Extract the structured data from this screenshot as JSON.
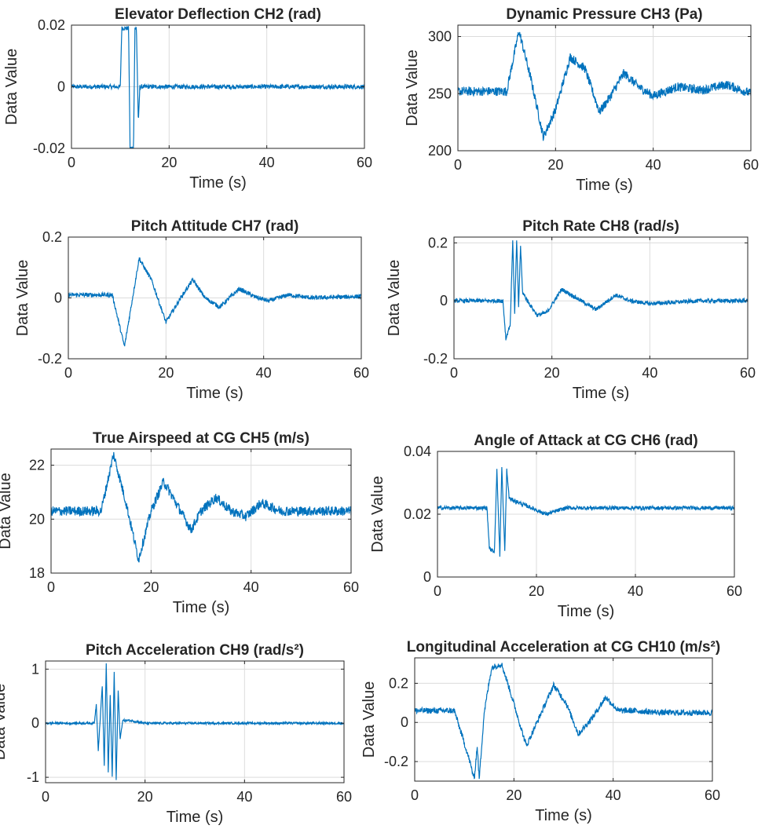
{
  "figure": {
    "series_color": "#0072BD",
    "axis_color": "#262626",
    "grid_color": "#dcdcdc"
  },
  "chart_data": [
    {
      "type": "line",
      "title": "Elevator Deflection CH2 (rad)",
      "xlabel": "Time (s)",
      "ylabel": "Data Value",
      "xlim": [
        0,
        60
      ],
      "ylim": [
        -0.02,
        0.02
      ],
      "xticks": [
        0,
        20,
        40,
        60
      ],
      "xtick_labels": [
        "0",
        "20",
        "40",
        "60"
      ],
      "yticks": [
        -0.02,
        0,
        0.02
      ],
      "ytick_labels": [
        "-0.02",
        "0",
        "0.02"
      ],
      "grid": true,
      "noise": 0.0007,
      "x": [
        0,
        10,
        10.3,
        11.7,
        12,
        12.7,
        13,
        13.3,
        13.7,
        14,
        60
      ],
      "y": [
        0,
        0,
        0.019,
        0.019,
        -0.02,
        -0.02,
        0.019,
        0.019,
        -0.012,
        0,
        0
      ]
    },
    {
      "type": "line",
      "title": "Dynamic Pressure CH3 (Pa)",
      "xlabel": "Time (s)",
      "ylabel": "Data Value",
      "xlim": [
        0,
        60
      ],
      "ylim": [
        200,
        310
      ],
      "xticks": [
        0,
        20,
        40,
        60
      ],
      "xtick_labels": [
        "0",
        "20",
        "40",
        "60"
      ],
      "yticks": [
        200,
        250,
        300
      ],
      "ytick_labels": [
        "200",
        "250",
        "300"
      ],
      "grid": true,
      "noise": 4,
      "x": [
        0,
        10,
        12.5,
        15,
        17.5,
        20,
        23,
        26,
        29,
        31,
        34,
        37,
        40,
        45,
        50,
        55,
        60
      ],
      "y": [
        252,
        252,
        305,
        262,
        212,
        236,
        282,
        272,
        234,
        246,
        268,
        256,
        248,
        256,
        253,
        258,
        250
      ]
    },
    {
      "type": "line",
      "title": "Pitch Attitude CH7 (rad)",
      "xlabel": "Time (s)",
      "ylabel": "Data Value",
      "xlim": [
        0,
        60
      ],
      "ylim": [
        -0.2,
        0.2
      ],
      "xticks": [
        0,
        20,
        40,
        60
      ],
      "xtick_labels": [
        "0",
        "20",
        "40",
        "60"
      ],
      "yticks": [
        -0.2,
        0,
        0.2
      ],
      "ytick_labels": [
        "-0.2",
        "0",
        "0.2"
      ],
      "grid": true,
      "noise": 0.007,
      "x": [
        0,
        9,
        11.5,
        14.5,
        17,
        20,
        23,
        25.5,
        28,
        31,
        35,
        38,
        41,
        45,
        50,
        60
      ],
      "y": [
        0.01,
        0.01,
        -0.16,
        0.13,
        0.06,
        -0.08,
        0.0,
        0.06,
        0.0,
        -0.03,
        0.03,
        0.005,
        -0.01,
        0.01,
        0.0,
        0.005
      ]
    },
    {
      "type": "line",
      "title": "Pitch Rate CH8 (rad/s)",
      "xlabel": "Time (s)",
      "ylabel": "Data Value",
      "xlim": [
        0,
        60
      ],
      "ylim": [
        -0.2,
        0.22
      ],
      "xticks": [
        0,
        20,
        40,
        60
      ],
      "xtick_labels": [
        "0",
        "20",
        "40",
        "60"
      ],
      "yticks": [
        -0.2,
        0,
        0.2
      ],
      "ytick_labels": [
        "-0.2",
        "0",
        "0.2"
      ],
      "grid": true,
      "noise": 0.007,
      "x": [
        0,
        10,
        10.6,
        11.5,
        12,
        12.4,
        12.8,
        13.2,
        13.6,
        14,
        15,
        17,
        19,
        22,
        26,
        29,
        33,
        36,
        40,
        50,
        60
      ],
      "y": [
        0,
        0,
        -0.13,
        -0.08,
        0.21,
        -0.05,
        0.21,
        -0.02,
        0.19,
        0.03,
        0.0,
        -0.05,
        -0.04,
        0.04,
        0.0,
        -0.03,
        0.02,
        0.0,
        -0.01,
        0.0,
        0.0
      ]
    },
    {
      "type": "line",
      "title": "True Airspeed at CG CH5 (m/s)",
      "xlabel": "Time (s)",
      "ylabel": "Data Value",
      "xlim": [
        0,
        60
      ],
      "ylim": [
        18,
        22.6
      ],
      "xticks": [
        0,
        20,
        40,
        60
      ],
      "xtick_labels": [
        "0",
        "20",
        "40",
        "60"
      ],
      "yticks": [
        18,
        20,
        22
      ],
      "ytick_labels": [
        "18",
        "20",
        "22"
      ],
      "grid": true,
      "noise": 0.18,
      "x": [
        0,
        10,
        12.5,
        15,
        17.5,
        20,
        22.5,
        25,
        28,
        30,
        33,
        36,
        39,
        42,
        46,
        50,
        60
      ],
      "y": [
        20.3,
        20.3,
        22.4,
        20.6,
        18.5,
        20.3,
        21.4,
        20.6,
        19.6,
        20.3,
        20.8,
        20.3,
        20.1,
        20.6,
        20.3,
        20.3,
        20.3
      ]
    },
    {
      "type": "line",
      "title": "Angle of Attack at CG CH6 (rad)",
      "xlabel": "Time (s)",
      "ylabel": "Data Value",
      "xlim": [
        0,
        60
      ],
      "ylim": [
        0,
        0.04
      ],
      "xticks": [
        0,
        20,
        40,
        60
      ],
      "xtick_labels": [
        "0",
        "20",
        "40",
        "60"
      ],
      "yticks": [
        0,
        0.02,
        0.04
      ],
      "ytick_labels": [
        "0",
        "0.02",
        "0.04"
      ],
      "grid": true,
      "noise": 0.0006,
      "x": [
        0,
        10,
        10.5,
        11.5,
        12,
        12.6,
        13,
        13.6,
        14,
        14.5,
        16,
        19,
        22,
        26,
        30,
        40,
        60
      ],
      "y": [
        0.022,
        0.022,
        0.009,
        0.008,
        0.034,
        0.007,
        0.035,
        0.008,
        0.034,
        0.025,
        0.024,
        0.022,
        0.02,
        0.022,
        0.022,
        0.022,
        0.022
      ]
    },
    {
      "type": "line",
      "title": "Pitch Acceleration CH9 (rad/s²)",
      "xlabel": "Time (s)",
      "ylabel": "Data Value",
      "xlim": [
        0,
        60
      ],
      "ylim": [
        -1.1,
        1.15
      ],
      "xticks": [
        0,
        20,
        40,
        60
      ],
      "xtick_labels": [
        "0",
        "20",
        "40",
        "60"
      ],
      "yticks": [
        -1,
        0,
        1
      ],
      "ytick_labels": [
        "-1",
        "0",
        "1"
      ],
      "grid": true,
      "noise": 0.02,
      "x": [
        0,
        9.8,
        10.2,
        10.6,
        11,
        11.4,
        11.8,
        12.2,
        12.6,
        13,
        13.4,
        13.8,
        14.2,
        14.6,
        15,
        15.5,
        17,
        20,
        60
      ],
      "y": [
        0,
        0,
        0.35,
        -0.5,
        0.1,
        0.7,
        -0.8,
        1.1,
        -0.9,
        0.5,
        -1.0,
        0.95,
        -1.05,
        0.6,
        -0.3,
        0.05,
        0.05,
        0.0,
        0.0
      ]
    },
    {
      "type": "line",
      "title": "Longitudinal Acceleration at CG CH10 (m/s²)",
      "xlabel": "Time (s)",
      "ylabel": "Data Value",
      "xlim": [
        0,
        60
      ],
      "ylim": [
        -0.3,
        0.33
      ],
      "xticks": [
        0,
        20,
        40,
        60
      ],
      "xtick_labels": [
        "0",
        "20",
        "40",
        "60"
      ],
      "yticks": [
        -0.2,
        0,
        0.2
      ],
      "ytick_labels": [
        "-0.2",
        "0",
        "0.2"
      ],
      "grid": true,
      "noise": 0.015,
      "x": [
        0,
        8,
        11,
        12,
        12.6,
        13,
        14,
        15.5,
        17.5,
        19,
        22.5,
        25,
        28,
        30.5,
        33,
        36,
        38.5,
        41,
        44,
        50,
        60
      ],
      "y": [
        0.06,
        0.06,
        -0.19,
        -0.29,
        -0.12,
        -0.29,
        0.05,
        0.28,
        0.3,
        0.18,
        -0.12,
        0.02,
        0.19,
        0.1,
        -0.06,
        0.03,
        0.13,
        0.06,
        0.06,
        0.05,
        0.05
      ]
    }
  ]
}
